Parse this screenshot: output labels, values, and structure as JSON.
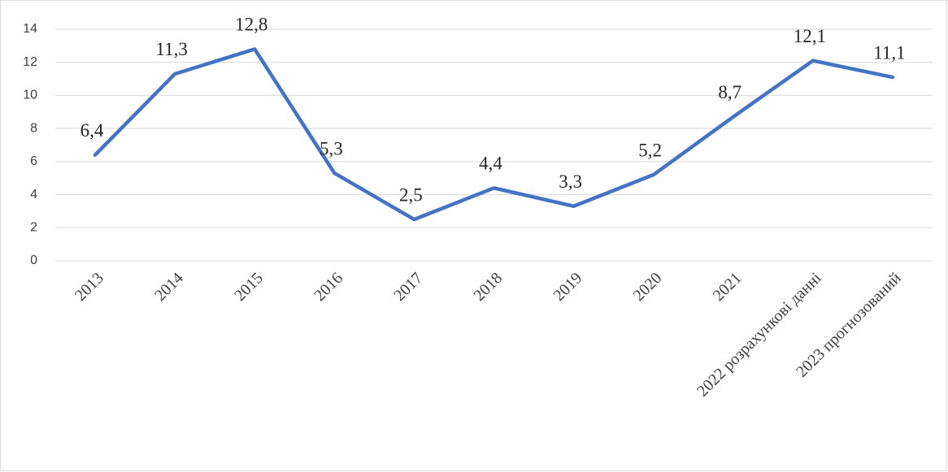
{
  "chart_data": {
    "type": "line",
    "categories": [
      "2013",
      "2014",
      "2015",
      "2016",
      "2017",
      "2018",
      "2019",
      "2020",
      "2021",
      "2022 розрахункові данні",
      "2023 прогнозований"
    ],
    "series": [
      {
        "color": "#4472c4",
        "values": [
          6.4,
          11.3,
          12.8,
          5.3,
          2.5,
          4.4,
          3.3,
          5.2,
          8.7,
          12.1,
          11.1
        ],
        "value_labels": [
          "6,4",
          "11,3",
          "12,8",
          "5,3",
          "2,5",
          "4,4",
          "3,3",
          "5,2",
          "8,7",
          "12,1",
          "11,1"
        ]
      }
    ],
    "ylim": [
      0,
      14
    ],
    "yticks": [
      0,
      2,
      4,
      6,
      8,
      10,
      12,
      14
    ],
    "grid": true
  }
}
